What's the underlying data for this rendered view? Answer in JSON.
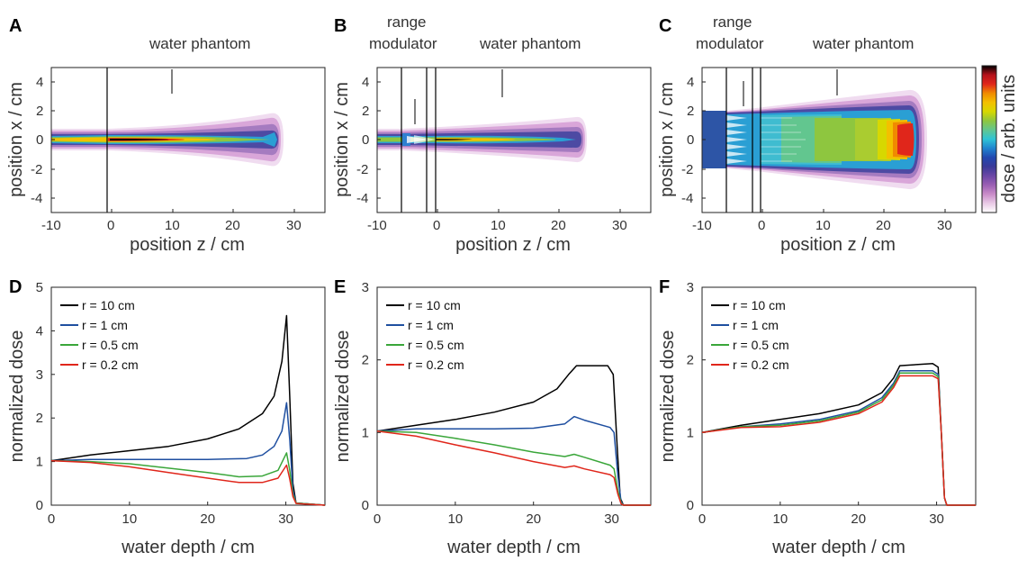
{
  "colors": {
    "r10": "#000000",
    "r1": "#1f4fa0",
    "r05": "#3aa63a",
    "r02": "#e0261b"
  },
  "colorbar": {
    "label": "dose / arb. units",
    "colormap": [
      "#ffffff",
      "#e9c9e6",
      "#c98cc9",
      "#9a5fb3",
      "#6b47a6",
      "#3a3a98",
      "#2248b0",
      "#1f84cf",
      "#2ec4d6",
      "#62c68f",
      "#8ec63f",
      "#d7d800",
      "#f3c000",
      "#f08a00",
      "#e0261b",
      "#b4111b",
      "#000000"
    ]
  },
  "panels": {
    "A": {
      "letter": "A",
      "xlabel": "position z / cm",
      "ylabel": "position x / cm",
      "annotations": [
        "water phantom"
      ],
      "xticks": [
        "-10",
        "0",
        "10",
        "20",
        "30"
      ],
      "yticks": [
        "4",
        "2",
        "0",
        "-2",
        "-4"
      ]
    },
    "B": {
      "letter": "B",
      "xlabel": "position z / cm",
      "ylabel": "position x / cm",
      "annotations": [
        "range",
        "modulator",
        "water phantom"
      ],
      "xticks": [
        "-10",
        "0",
        "10",
        "20",
        "30"
      ],
      "yticks": [
        "4",
        "2",
        "0",
        "-2",
        "-4"
      ]
    },
    "C": {
      "letter": "C",
      "xlabel": "position z / cm",
      "ylabel": "position x / cm",
      "annotations": [
        "range",
        "modulator",
        "water phantom"
      ],
      "xticks": [
        "-10",
        "0",
        "10",
        "20",
        "30"
      ],
      "yticks": [
        "4",
        "2",
        "0",
        "-2",
        "-4"
      ]
    },
    "D": {
      "letter": "D"
    },
    "E": {
      "letter": "E"
    },
    "F": {
      "letter": "F"
    }
  },
  "chart_data": [
    {
      "type": "heatmap",
      "panel": "A",
      "xlabel": "position z / cm",
      "ylabel": "position x / cm",
      "xlim": [
        -10,
        35
      ],
      "ylim": [
        -5,
        5
      ],
      "x_ticks": [
        -10,
        0,
        10,
        20,
        30
      ],
      "y_ticks": [
        -4,
        -2,
        0,
        2,
        4
      ],
      "annotations": [
        "water phantom"
      ],
      "colorbar_label": "dose / arb. units"
    },
    {
      "type": "heatmap",
      "panel": "B",
      "xlabel": "position z / cm",
      "ylabel": "position x / cm",
      "xlim": [
        -10,
        35
      ],
      "ylim": [
        -5,
        5
      ],
      "x_ticks": [
        -10,
        0,
        10,
        20,
        30
      ],
      "y_ticks": [
        -4,
        -2,
        0,
        2,
        4
      ],
      "annotations": [
        "range modulator",
        "water phantom"
      ]
    },
    {
      "type": "heatmap",
      "panel": "C",
      "xlabel": "position z / cm",
      "ylabel": "position x / cm",
      "xlim": [
        -10,
        35
      ],
      "ylim": [
        -5,
        5
      ],
      "x_ticks": [
        -10,
        0,
        10,
        20,
        30
      ],
      "y_ticks": [
        -4,
        -2,
        0,
        2,
        4
      ],
      "annotations": [
        "range modulator",
        "water phantom"
      ]
    },
    {
      "type": "line",
      "panel": "D",
      "xlabel": "water depth / cm",
      "ylabel": "normalized dose",
      "xlim": [
        0,
        35
      ],
      "ylim": [
        0,
        5
      ],
      "x_ticks": [
        0,
        10,
        20,
        30
      ],
      "y_ticks": [
        0,
        1,
        2,
        3,
        4,
        5
      ],
      "legend": "top-left",
      "series": [
        {
          "name": "r = 10 cm",
          "color": "#000000",
          "points": [
            [
              0,
              1.02
            ],
            [
              5,
              1.15
            ],
            [
              10,
              1.25
            ],
            [
              15,
              1.35
            ],
            [
              20,
              1.52
            ],
            [
              24,
              1.75
            ],
            [
              27,
              2.1
            ],
            [
              28.5,
              2.5
            ],
            [
              29.5,
              3.3
            ],
            [
              30.1,
              4.35
            ],
            [
              30.5,
              2.5
            ],
            [
              30.9,
              0.5
            ],
            [
              31.3,
              0.05
            ],
            [
              35,
              0
            ]
          ]
        },
        {
          "name": "r = 1 cm",
          "color": "#1f4fa0",
          "points": [
            [
              0,
              1.02
            ],
            [
              5,
              1.05
            ],
            [
              10,
              1.05
            ],
            [
              15,
              1.05
            ],
            [
              20,
              1.05
            ],
            [
              25,
              1.07
            ],
            [
              27,
              1.15
            ],
            [
              28.5,
              1.35
            ],
            [
              29.5,
              1.7
            ],
            [
              30.1,
              2.35
            ],
            [
              30.5,
              1.5
            ],
            [
              30.9,
              0.35
            ],
            [
              31.3,
              0.05
            ],
            [
              35,
              0
            ]
          ]
        },
        {
          "name": "r = 0.5 cm",
          "color": "#3aa63a",
          "points": [
            [
              0,
              1.02
            ],
            [
              5,
              1.0
            ],
            [
              10,
              0.95
            ],
            [
              15,
              0.85
            ],
            [
              20,
              0.75
            ],
            [
              24,
              0.65
            ],
            [
              27,
              0.67
            ],
            [
              29,
              0.8
            ],
            [
              30.1,
              1.2
            ],
            [
              30.5,
              0.8
            ],
            [
              30.9,
              0.25
            ],
            [
              31.3,
              0.05
            ],
            [
              35,
              0
            ]
          ]
        },
        {
          "name": "r = 0.2 cm",
          "color": "#e0261b",
          "points": [
            [
              0,
              1.02
            ],
            [
              5,
              0.98
            ],
            [
              10,
              0.88
            ],
            [
              15,
              0.75
            ],
            [
              20,
              0.62
            ],
            [
              24,
              0.52
            ],
            [
              27,
              0.52
            ],
            [
              29,
              0.62
            ],
            [
              30.1,
              0.92
            ],
            [
              30.5,
              0.6
            ],
            [
              30.9,
              0.2
            ],
            [
              31.3,
              0.04
            ],
            [
              35,
              0
            ]
          ]
        }
      ]
    },
    {
      "type": "line",
      "panel": "E",
      "xlabel": "water depth / cm",
      "ylabel": "normalized dose",
      "xlim": [
        0,
        35
      ],
      "ylim": [
        0,
        3
      ],
      "x_ticks": [
        0,
        10,
        20,
        30
      ],
      "y_ticks": [
        0,
        1,
        2,
        3
      ],
      "legend": "top-left",
      "series": [
        {
          "name": "r = 10 cm",
          "color": "#000000",
          "points": [
            [
              0,
              1.02
            ],
            [
              5,
              1.1
            ],
            [
              10,
              1.18
            ],
            [
              15,
              1.28
            ],
            [
              20,
              1.42
            ],
            [
              23,
              1.6
            ],
            [
              24.5,
              1.8
            ],
            [
              25.5,
              1.92
            ],
            [
              29.5,
              1.92
            ],
            [
              30.2,
              1.8
            ],
            [
              30.7,
              0.8
            ],
            [
              31.1,
              0.1
            ],
            [
              31.5,
              0
            ],
            [
              35,
              0
            ]
          ]
        },
        {
          "name": "r = 1 cm",
          "color": "#1f4fa0",
          "points": [
            [
              0,
              1.02
            ],
            [
              5,
              1.05
            ],
            [
              10,
              1.05
            ],
            [
              15,
              1.05
            ],
            [
              20,
              1.06
            ],
            [
              24,
              1.12
            ],
            [
              25.2,
              1.22
            ],
            [
              26.5,
              1.17
            ],
            [
              29.8,
              1.07
            ],
            [
              30.3,
              1.0
            ],
            [
              30.8,
              0.4
            ],
            [
              31.2,
              0.05
            ],
            [
              31.5,
              0
            ],
            [
              35,
              0
            ]
          ]
        },
        {
          "name": "r = 0.5 cm",
          "color": "#3aa63a",
          "points": [
            [
              0,
              1.02
            ],
            [
              5,
              1.0
            ],
            [
              10,
              0.92
            ],
            [
              15,
              0.83
            ],
            [
              20,
              0.73
            ],
            [
              24,
              0.67
            ],
            [
              25.2,
              0.7
            ],
            [
              26.5,
              0.66
            ],
            [
              29.8,
              0.55
            ],
            [
              30.3,
              0.5
            ],
            [
              30.8,
              0.2
            ],
            [
              31.2,
              0.03
            ],
            [
              31.5,
              0
            ],
            [
              35,
              0
            ]
          ]
        },
        {
          "name": "r = 0.2 cm",
          "color": "#e0261b",
          "points": [
            [
              0,
              1.02
            ],
            [
              5,
              0.95
            ],
            [
              10,
              0.83
            ],
            [
              15,
              0.72
            ],
            [
              20,
              0.6
            ],
            [
              24,
              0.52
            ],
            [
              25.2,
              0.54
            ],
            [
              26.5,
              0.5
            ],
            [
              29.8,
              0.42
            ],
            [
              30.3,
              0.38
            ],
            [
              30.8,
              0.15
            ],
            [
              31.2,
              0.02
            ],
            [
              31.5,
              0
            ],
            [
              35,
              0
            ]
          ]
        }
      ]
    },
    {
      "type": "line",
      "panel": "F",
      "xlabel": "water depth / cm",
      "ylabel": "normalized dose",
      "xlim": [
        0,
        35
      ],
      "ylim": [
        0,
        3
      ],
      "x_ticks": [
        0,
        10,
        20,
        30
      ],
      "y_ticks": [
        0,
        1,
        2,
        3
      ],
      "legend": "top-left",
      "series": [
        {
          "name": "r = 10 cm",
          "color": "#000000",
          "points": [
            [
              0,
              1.0
            ],
            [
              5,
              1.1
            ],
            [
              10,
              1.18
            ],
            [
              15,
              1.26
            ],
            [
              20,
              1.38
            ],
            [
              23,
              1.55
            ],
            [
              24.5,
              1.75
            ],
            [
              25.3,
              1.92
            ],
            [
              29.5,
              1.95
            ],
            [
              30.2,
              1.9
            ],
            [
              30.6,
              1.0
            ],
            [
              31,
              0.1
            ],
            [
              31.3,
              0
            ],
            [
              35,
              0
            ]
          ]
        },
        {
          "name": "r = 1 cm",
          "color": "#1f4fa0",
          "points": [
            [
              0,
              1.0
            ],
            [
              5,
              1.08
            ],
            [
              10,
              1.12
            ],
            [
              15,
              1.18
            ],
            [
              20,
              1.3
            ],
            [
              23,
              1.48
            ],
            [
              24.5,
              1.68
            ],
            [
              25.3,
              1.85
            ],
            [
              29.5,
              1.85
            ],
            [
              30.2,
              1.8
            ],
            [
              30.6,
              1.0
            ],
            [
              31,
              0.1
            ],
            [
              31.3,
              0
            ],
            [
              35,
              0
            ]
          ]
        },
        {
          "name": "r = 0.5 cm",
          "color": "#3aa63a",
          "points": [
            [
              0,
              1.0
            ],
            [
              5,
              1.08
            ],
            [
              10,
              1.1
            ],
            [
              15,
              1.16
            ],
            [
              20,
              1.28
            ],
            [
              23,
              1.45
            ],
            [
              24.5,
              1.65
            ],
            [
              25.3,
              1.82
            ],
            [
              29.5,
              1.82
            ],
            [
              30.2,
              1.77
            ],
            [
              30.6,
              1.0
            ],
            [
              31,
              0.1
            ],
            [
              31.3,
              0
            ],
            [
              35,
              0
            ]
          ]
        },
        {
          "name": "r = 0.2 cm",
          "color": "#e0261b",
          "points": [
            [
              0,
              1.0
            ],
            [
              5,
              1.07
            ],
            [
              10,
              1.08
            ],
            [
              15,
              1.14
            ],
            [
              20,
              1.26
            ],
            [
              23,
              1.42
            ],
            [
              24.5,
              1.62
            ],
            [
              25.3,
              1.78
            ],
            [
              29.5,
              1.78
            ],
            [
              30.2,
              1.74
            ],
            [
              30.6,
              1.0
            ],
            [
              31,
              0.1
            ],
            [
              31.3,
              0
            ],
            [
              35,
              0
            ]
          ]
        }
      ]
    }
  ]
}
